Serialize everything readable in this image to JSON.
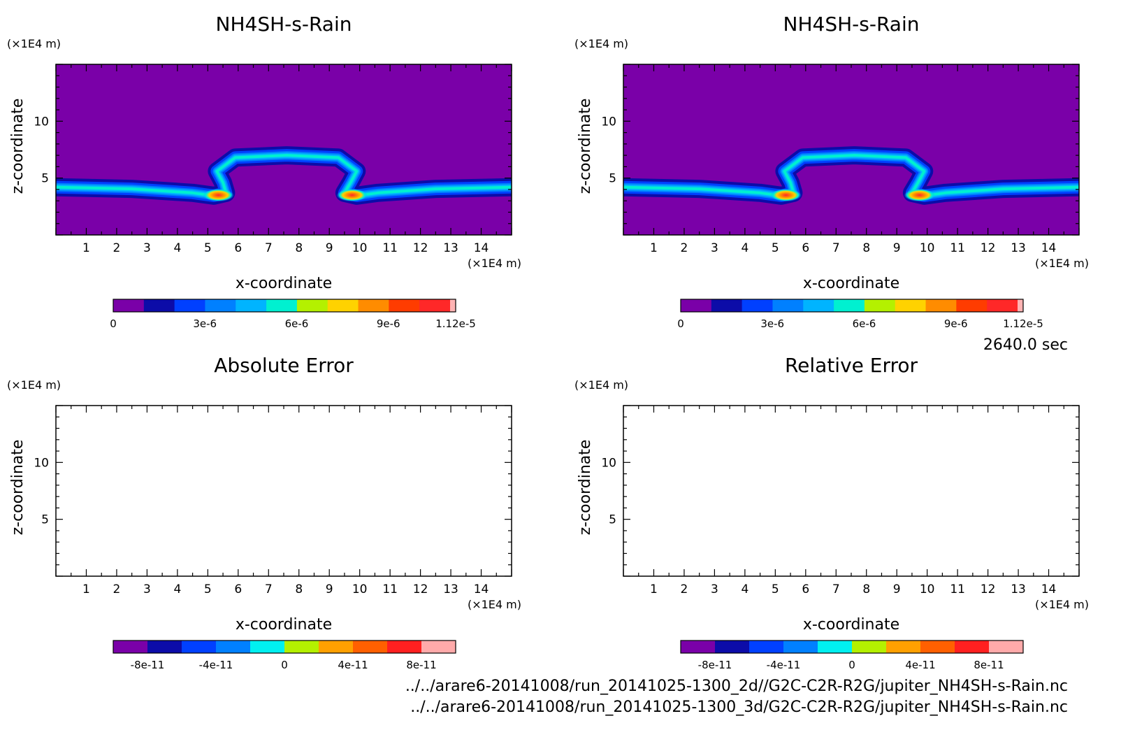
{
  "time_label": "2640.0 sec",
  "footer": {
    "file1": "../../arare6-20141008/run_20141025-1300_2d//G2C-C2R-R2G/jupiter_NH4SH-s-Rain.nc",
    "file2": "../../arare6-20141008/run_20141025-1300_3d/G2C-C2R-R2G/jupiter_NH4SH-s-Rain.nc"
  },
  "chart_data": [
    {
      "type": "heatmap",
      "title": "NH4SH-s-Rain",
      "xlabel": "x-coordinate",
      "ylabel": "z-coordinate",
      "x_unit": "(×1E4 m)",
      "y_unit": "(×1E4 m)",
      "xlim": [
        0,
        15
      ],
      "ylim": [
        0,
        15
      ],
      "x_ticks": [
        1,
        2,
        3,
        4,
        5,
        6,
        7,
        8,
        9,
        10,
        11,
        12,
        13,
        14
      ],
      "y_ticks": [
        5,
        10
      ],
      "background_level": 0,
      "colorbar": {
        "colors": [
          "#7a00a8",
          "#0c0ca8",
          "#0040ff",
          "#0080ff",
          "#00b4ff",
          "#00f0d0",
          "#b4f000",
          "#ffd200",
          "#ff8c00",
          "#ff3c00",
          "#ff2828",
          "#ffb4b4"
        ],
        "ticks": [
          0,
          3e-06,
          6e-06,
          9e-06,
          1.12e-05
        ],
        "tick_labels": [
          "0",
          "3e-6",
          "6e-6",
          "9e-6",
          "1.12e-5"
        ],
        "min": 0,
        "max": 1.12e-05
      },
      "feature": {
        "description_values": "thin layer of rain at z≈4 with cap rising to z≈7 between x≈5.5 and x≈9.8; peak values ~1.1e-5 near x≈5.5 and x≈9.8 at z≈3.5",
        "baseline_z": 4.0,
        "cap_top_z": 7.0,
        "cap_x_range": [
          5.5,
          9.8
        ],
        "peak": 1.12e-05
      }
    },
    {
      "type": "heatmap",
      "title": "NH4SH-s-Rain",
      "xlabel": "x-coordinate",
      "ylabel": "z-coordinate",
      "x_unit": "(×1E4 m)",
      "y_unit": "(×1E4 m)",
      "xlim": [
        0,
        15
      ],
      "ylim": [
        0,
        15
      ],
      "x_ticks": [
        1,
        2,
        3,
        4,
        5,
        6,
        7,
        8,
        9,
        10,
        11,
        12,
        13,
        14
      ],
      "y_ticks": [
        5,
        10
      ],
      "colorbar": {
        "colors": [
          "#7a00a8",
          "#0c0ca8",
          "#0040ff",
          "#0080ff",
          "#00b4ff",
          "#00f0d0",
          "#b4f000",
          "#ffd200",
          "#ff8c00",
          "#ff3c00",
          "#ff2828",
          "#ffb4b4"
        ],
        "ticks": [
          0,
          3e-06,
          6e-06,
          9e-06,
          1.12e-05
        ],
        "tick_labels": [
          "0",
          "3e-6",
          "6e-6",
          "9e-6",
          "1.12e-5"
        ],
        "min": 0,
        "max": 1.12e-05
      }
    },
    {
      "type": "heatmap",
      "title": "Absolute Error",
      "xlabel": "x-coordinate",
      "ylabel": "z-coordinate",
      "x_unit": "(×1E4 m)",
      "y_unit": "(×1E4 m)",
      "xlim": [
        0,
        15
      ],
      "ylim": [
        0,
        15
      ],
      "x_ticks": [
        1,
        2,
        3,
        4,
        5,
        6,
        7,
        8,
        9,
        10,
        11,
        12,
        13,
        14
      ],
      "y_ticks": [
        5,
        10
      ],
      "empty": true,
      "colorbar": {
        "colors": [
          "#7a00a8",
          "#0c0ca8",
          "#0040ff",
          "#0080ff",
          "#00f0f0",
          "#b4f000",
          "#ffa000",
          "#ff6000",
          "#ff2020",
          "#ffaaaa"
        ],
        "ticks": [
          -8e-11,
          -4e-11,
          0,
          4e-11,
          8e-11
        ],
        "tick_labels": [
          "-8e-11",
          "-4e-11",
          "0",
          "4e-11",
          "8e-11"
        ],
        "min": -1e-10,
        "max": 1e-10
      }
    },
    {
      "type": "heatmap",
      "title": "Relative Error",
      "xlabel": "x-coordinate",
      "ylabel": "z-coordinate",
      "x_unit": "(×1E4 m)",
      "y_unit": "(×1E4 m)",
      "xlim": [
        0,
        15
      ],
      "ylim": [
        0,
        15
      ],
      "x_ticks": [
        1,
        2,
        3,
        4,
        5,
        6,
        7,
        8,
        9,
        10,
        11,
        12,
        13,
        14
      ],
      "y_ticks": [
        5,
        10
      ],
      "empty": true,
      "colorbar": {
        "colors": [
          "#7a00a8",
          "#0c0ca8",
          "#0040ff",
          "#0080ff",
          "#00f0f0",
          "#b4f000",
          "#ffa000",
          "#ff6000",
          "#ff2020",
          "#ffaaaa"
        ],
        "ticks": [
          -8e-11,
          -4e-11,
          0,
          4e-11,
          8e-11
        ],
        "tick_labels": [
          "-8e-11",
          "-4e-11",
          "0",
          "4e-11",
          "8e-11"
        ],
        "min": -1e-10,
        "max": 1e-10
      }
    }
  ]
}
